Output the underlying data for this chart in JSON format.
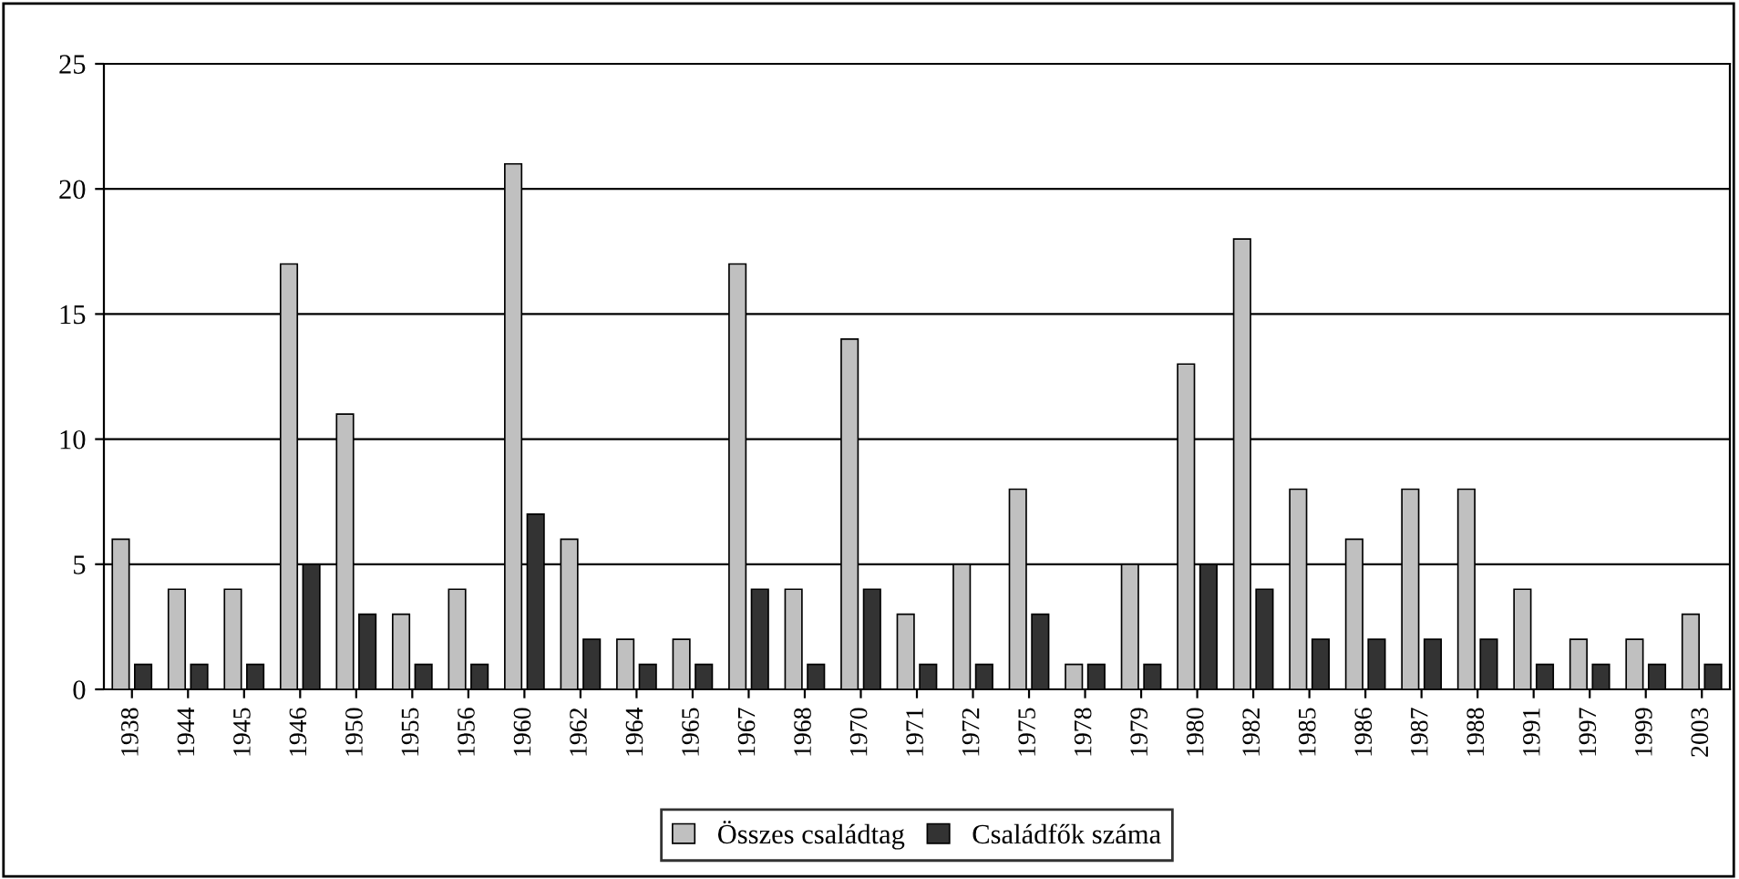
{
  "chart_data": {
    "type": "bar",
    "categories": [
      "1938",
      "1944",
      "1945",
      "1946",
      "1950",
      "1955",
      "1956",
      "1960",
      "1962",
      "1964",
      "1965",
      "1967",
      "1968",
      "1970",
      "1971",
      "1972",
      "1975",
      "1978",
      "1979",
      "1980",
      "1982",
      "1985",
      "1986",
      "1987",
      "1988",
      "1991",
      "1997",
      "1999",
      "2003"
    ],
    "series": [
      {
        "name": "Összes családtag",
        "color": "#c0c0c0",
        "values": [
          6,
          4,
          4,
          17,
          11,
          3,
          4,
          21,
          6,
          2,
          2,
          17,
          4,
          14,
          3,
          5,
          8,
          1,
          5,
          13,
          18,
          8,
          6,
          8,
          8,
          4,
          2,
          2,
          3
        ]
      },
      {
        "name": "Családfők száma",
        "color": "#333333",
        "values": [
          1,
          1,
          1,
          5,
          3,
          1,
          1,
          7,
          2,
          1,
          1,
          4,
          1,
          4,
          1,
          1,
          3,
          1,
          1,
          5,
          4,
          2,
          2,
          2,
          2,
          1,
          1,
          1,
          1
        ]
      }
    ],
    "ylim": [
      0,
      25
    ],
    "yticks": [
      0,
      5,
      10,
      15,
      20,
      25
    ],
    "grid": "y",
    "legend": "bottom"
  }
}
